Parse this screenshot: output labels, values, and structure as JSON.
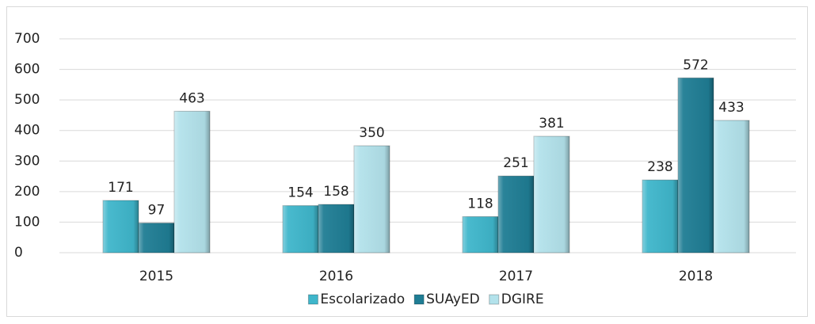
{
  "chart_data": {
    "type": "bar",
    "categories": [
      "2015",
      "2016",
      "2017",
      "2018"
    ],
    "series": [
      {
        "name": "Escolarizado",
        "color": "#3fb6cb",
        "values": [
          171,
          154,
          118,
          238
        ]
      },
      {
        "name": "SUAyED",
        "color": "#1f7d94",
        "values": [
          97,
          158,
          251,
          572
        ]
      },
      {
        "name": "DGIRE",
        "color": "#b3e2eb",
        "values": [
          463,
          350,
          381,
          433
        ]
      }
    ],
    "ylim": [
      0,
      700
    ],
    "yticks": [
      0,
      100,
      200,
      300,
      400,
      500,
      600,
      700
    ],
    "grid": true,
    "legend": "bottom"
  }
}
